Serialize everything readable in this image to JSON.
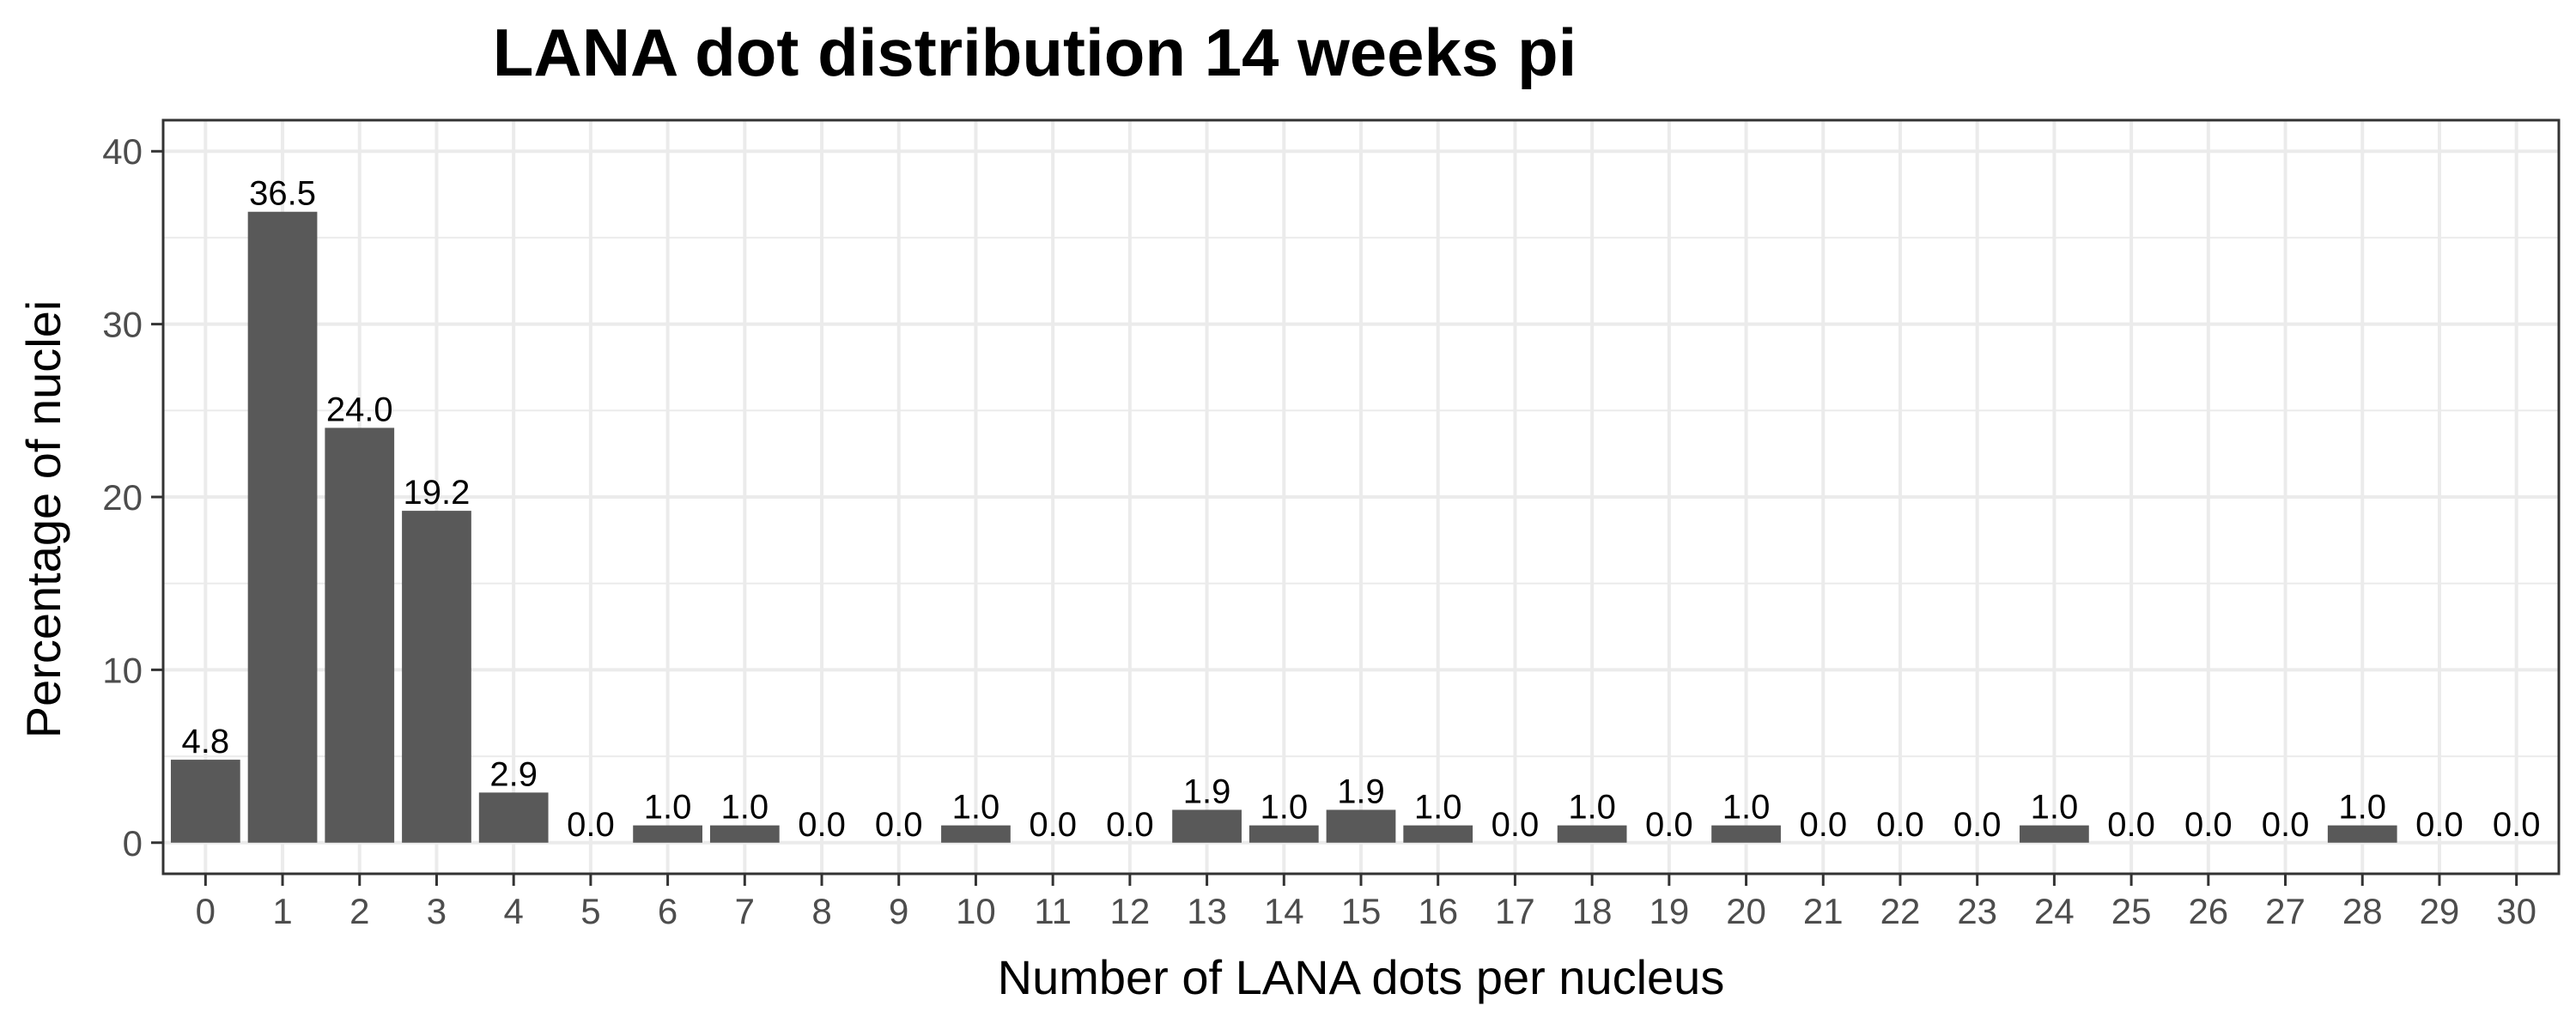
{
  "chart_data": {
    "type": "bar",
    "title": "LANA dot distribution 14 weeks pi",
    "xlabel": "Number of LANA dots per nucleus",
    "ylabel": "Percentage of nuclei",
    "categories": [
      "0",
      "1",
      "2",
      "3",
      "4",
      "5",
      "6",
      "7",
      "8",
      "9",
      "10",
      "11",
      "12",
      "13",
      "14",
      "15",
      "16",
      "17",
      "18",
      "19",
      "20",
      "21",
      "22",
      "23",
      "24",
      "25",
      "26",
      "27",
      "28",
      "29",
      "30"
    ],
    "values": [
      4.8,
      36.5,
      24.0,
      19.2,
      2.9,
      0.0,
      1.0,
      1.0,
      0.0,
      0.0,
      1.0,
      0.0,
      0.0,
      1.9,
      1.0,
      1.9,
      1.0,
      0.0,
      1.0,
      0.0,
      1.0,
      0.0,
      0.0,
      0.0,
      1.0,
      0.0,
      0.0,
      0.0,
      1.0,
      0.0,
      0.0
    ],
    "labels": [
      "4.8",
      "36.5",
      "24.0",
      "19.2",
      "2.9",
      "0.0",
      "1.0",
      "1.0",
      "0.0",
      "0.0",
      "1.0",
      "0.0",
      "0.0",
      "1.9",
      "1.0",
      "1.9",
      "1.0",
      "0.0",
      "1.0",
      "0.0",
      "1.0",
      "0.0",
      "0.0",
      "0.0",
      "1.0",
      "0.0",
      "0.0",
      "0.0",
      "1.0",
      "0.0",
      "0.0"
    ],
    "yticks": [
      0,
      10,
      20,
      30,
      40
    ],
    "ylim": [
      -1.8,
      41.8
    ],
    "grid": true,
    "legend": "none",
    "bar_color": "#595959",
    "grid_color": "#ebebeb",
    "panel_border_color": "#333333"
  }
}
